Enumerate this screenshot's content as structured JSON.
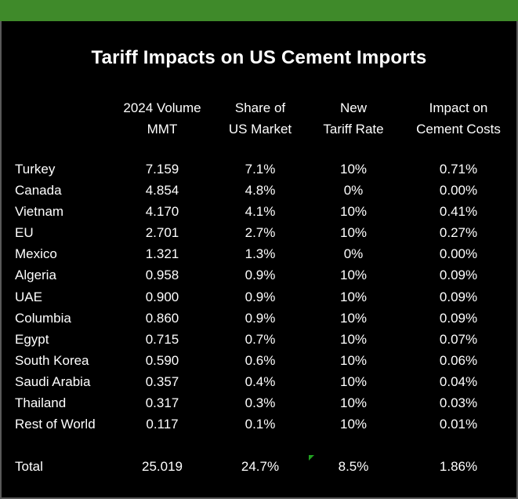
{
  "title": "Tariff Impacts on US Cement Imports",
  "headers": {
    "volume": [
      "2024 Volume",
      "MMT"
    ],
    "share": [
      "Share of",
      "US Market"
    ],
    "rate": [
      "New",
      "Tariff Rate"
    ],
    "impact": [
      "Impact on",
      "Cement Costs"
    ]
  },
  "rows": [
    {
      "country": "Turkey",
      "volume": "7.159",
      "share": "7.1%",
      "rate": "10%",
      "impact": "0.71%"
    },
    {
      "country": "Canada",
      "volume": "4.854",
      "share": "4.8%",
      "rate": "0%",
      "impact": "0.00%"
    },
    {
      "country": "Vietnam",
      "volume": "4.170",
      "share": "4.1%",
      "rate": "10%",
      "impact": "0.41%"
    },
    {
      "country": "EU",
      "volume": "2.701",
      "share": "2.7%",
      "rate": "10%",
      "impact": "0.27%"
    },
    {
      "country": "Mexico",
      "volume": "1.321",
      "share": "1.3%",
      "rate": "0%",
      "impact": "0.00%"
    },
    {
      "country": "Algeria",
      "volume": "0.958",
      "share": "0.9%",
      "rate": "10%",
      "impact": "0.09%"
    },
    {
      "country": "UAE",
      "volume": "0.900",
      "share": "0.9%",
      "rate": "10%",
      "impact": "0.09%"
    },
    {
      "country": "Columbia",
      "volume": "0.860",
      "share": "0.9%",
      "rate": "10%",
      "impact": "0.09%"
    },
    {
      "country": "Egypt",
      "volume": "0.715",
      "share": "0.7%",
      "rate": "10%",
      "impact": "0.07%"
    },
    {
      "country": "South Korea",
      "volume": "0.590",
      "share": "0.6%",
      "rate": "10%",
      "impact": "0.06%"
    },
    {
      "country": "Saudi Arabia",
      "volume": "0.357",
      "share": "0.4%",
      "rate": "10%",
      "impact": "0.04%"
    },
    {
      "country": "Thailand",
      "volume": "0.317",
      "share": "0.3%",
      "rate": "10%",
      "impact": "0.03%"
    },
    {
      "country": "Rest of World",
      "volume": "0.117",
      "share": "0.1%",
      "rate": "10%",
      "impact": "0.01%"
    }
  ],
  "total": {
    "country": "Total",
    "volume": "25.019",
    "share": "24.7%",
    "rate": "8.5%",
    "impact": "1.86%"
  },
  "colors": {
    "top_bar": "#3f8a2a",
    "background": "#000000",
    "text": "#ffffff",
    "error_indicator": "#21a121"
  }
}
